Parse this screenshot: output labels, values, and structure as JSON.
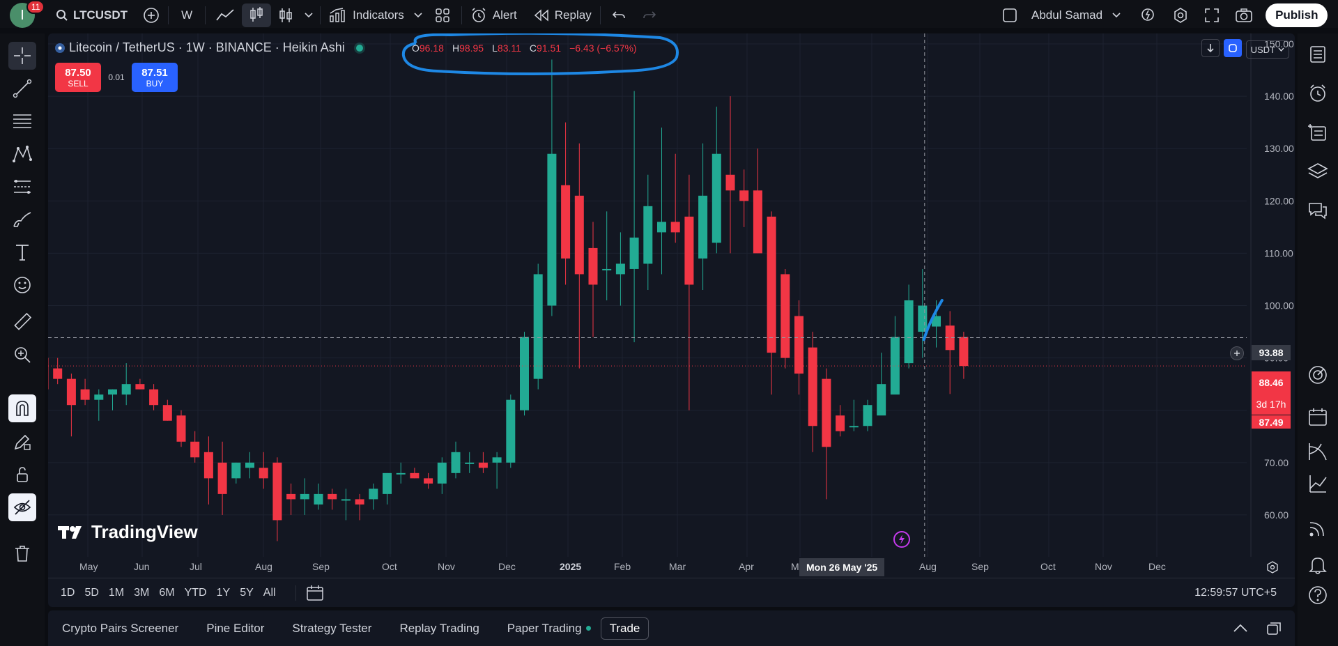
{
  "topbar": {
    "avatar_letter": "I",
    "notification_count": "11",
    "symbol": "LTCUSDT",
    "interval": "W",
    "indicators_label": "Indicators",
    "alert_label": "Alert",
    "replay_label": "Replay",
    "layout_name": "Abdul Samad",
    "publish_label": "Publish"
  },
  "legend": {
    "title": "Litecoin / TetherUS · 1W · BINANCE · Heikin Ashi",
    "ohlc": {
      "o_key": "O",
      "o": "96.18",
      "h_key": "H",
      "h": "98.95",
      "l_key": "L",
      "l": "83.11",
      "c_key": "C",
      "c": "91.51",
      "change": "−6.43 (−6.57%)"
    }
  },
  "trade_widget": {
    "sell_price": "87.50",
    "sell_label": "SELL",
    "spread": "0.01",
    "buy_price": "87.51",
    "buy_label": "BUY"
  },
  "currency_select": "USDT",
  "watermark": "TradingView",
  "price_labels": {
    "crosshair": "93.88",
    "last_price": "88.46",
    "countdown": "3d 17h",
    "bid": "87.49"
  },
  "crosshair_date": "Mon 26 May '25",
  "time_axis_labels": [
    "May",
    "Jun",
    "Jul",
    "Aug",
    "Sep",
    "Oct",
    "Nov",
    "Dec",
    "2025",
    "Feb",
    "Mar",
    "Apr",
    "M",
    "Jul",
    "Aug",
    "Sep",
    "Oct",
    "Nov",
    "Dec"
  ],
  "range_buttons": [
    "1D",
    "5D",
    "1M",
    "3M",
    "6M",
    "YTD",
    "1Y",
    "5Y",
    "All"
  ],
  "clock": "12:59:57 UTC+5",
  "bottom_tabs": [
    "Crypto Pairs Screener",
    "Pine Editor",
    "Strategy Tester",
    "Replay Trading",
    "Paper Trading",
    "Trade"
  ],
  "colors": {
    "up": "#22ab94",
    "down": "#f23645",
    "background": "#131722",
    "annotation": "#1e88e5"
  },
  "chart_data": {
    "type": "candlestick",
    "ylim": [
      52,
      152
    ],
    "yticks": [
      60,
      70,
      80,
      90,
      100,
      110,
      120,
      130,
      140,
      150
    ],
    "candles": [
      {
        "o": 90,
        "h": 91,
        "l": 80,
        "c": 84
      },
      {
        "o": 88,
        "h": 90,
        "l": 85,
        "c": 86
      },
      {
        "o": 86,
        "h": 87,
        "l": 75,
        "c": 81
      },
      {
        "o": 84,
        "h": 86,
        "l": 81,
        "c": 82
      },
      {
        "o": 82,
        "h": 84,
        "l": 78,
        "c": 83
      },
      {
        "o": 83,
        "h": 84,
        "l": 80,
        "c": 84
      },
      {
        "o": 83,
        "h": 89,
        "l": 81,
        "c": 85
      },
      {
        "o": 85,
        "h": 86,
        "l": 84,
        "c": 84
      },
      {
        "o": 84,
        "h": 85,
        "l": 80,
        "c": 81
      },
      {
        "o": 81,
        "h": 82,
        "l": 78,
        "c": 78
      },
      {
        "o": 79,
        "h": 80,
        "l": 73,
        "c": 74
      },
      {
        "o": 74,
        "h": 76,
        "l": 70,
        "c": 71
      },
      {
        "o": 72,
        "h": 75,
        "l": 62,
        "c": 67
      },
      {
        "o": 70,
        "h": 74,
        "l": 60,
        "c": 64
      },
      {
        "o": 67,
        "h": 70,
        "l": 66,
        "c": 70
      },
      {
        "o": 69,
        "h": 72,
        "l": 67,
        "c": 70
      },
      {
        "o": 69,
        "h": 72,
        "l": 65,
        "c": 67
      },
      {
        "o": 70,
        "h": 71,
        "l": 55,
        "c": 59
      },
      {
        "o": 64,
        "h": 66,
        "l": 60,
        "c": 63
      },
      {
        "o": 63,
        "h": 67,
        "l": 60,
        "c": 64
      },
      {
        "o": 62,
        "h": 66,
        "l": 61,
        "c": 64
      },
      {
        "o": 64,
        "h": 65,
        "l": 61,
        "c": 63
      },
      {
        "o": 63,
        "h": 65,
        "l": 59,
        "c": 63
      },
      {
        "o": 63,
        "h": 64,
        "l": 59,
        "c": 62
      },
      {
        "o": 63,
        "h": 66,
        "l": 61,
        "c": 65
      },
      {
        "o": 64,
        "h": 68,
        "l": 62,
        "c": 68
      },
      {
        "o": 68,
        "h": 70,
        "l": 66,
        "c": 68
      },
      {
        "o": 68,
        "h": 69,
        "l": 67,
        "c": 67
      },
      {
        "o": 67,
        "h": 68,
        "l": 65,
        "c": 66
      },
      {
        "o": 66,
        "h": 71,
        "l": 64,
        "c": 70
      },
      {
        "o": 68,
        "h": 74,
        "l": 67,
        "c": 72
      },
      {
        "o": 70,
        "h": 72,
        "l": 68,
        "c": 70
      },
      {
        "o": 70,
        "h": 72,
        "l": 68,
        "c": 69
      },
      {
        "o": 70,
        "h": 72,
        "l": 65,
        "c": 71
      },
      {
        "o": 70,
        "h": 83,
        "l": 69,
        "c": 82
      },
      {
        "o": 80,
        "h": 95,
        "l": 79,
        "c": 94
      },
      {
        "o": 86,
        "h": 108,
        "l": 84,
        "c": 106
      },
      {
        "o": 100,
        "h": 147,
        "l": 98,
        "c": 129
      },
      {
        "o": 123,
        "h": 135,
        "l": 104,
        "c": 109
      },
      {
        "o": 121,
        "h": 131,
        "l": 88,
        "c": 106
      },
      {
        "o": 111,
        "h": 116,
        "l": 94,
        "c": 104
      },
      {
        "o": 107,
        "h": 118,
        "l": 101,
        "c": 107
      },
      {
        "o": 106,
        "h": 114,
        "l": 100,
        "c": 108
      },
      {
        "o": 107,
        "h": 141,
        "l": 93,
        "c": 113
      },
      {
        "o": 108,
        "h": 125,
        "l": 103,
        "c": 119
      },
      {
        "o": 114,
        "h": 134,
        "l": 106,
        "c": 116
      },
      {
        "o": 116,
        "h": 129,
        "l": 112,
        "c": 114
      },
      {
        "o": 117,
        "h": 125,
        "l": 80,
        "c": 104
      },
      {
        "o": 109,
        "h": 131,
        "l": 103,
        "c": 121
      },
      {
        "o": 112,
        "h": 138,
        "l": 110,
        "c": 129
      },
      {
        "o": 125,
        "h": 140,
        "l": 110,
        "c": 122
      },
      {
        "o": 122,
        "h": 126,
        "l": 115,
        "c": 120
      },
      {
        "o": 122,
        "h": 130,
        "l": 110,
        "c": 110
      },
      {
        "o": 117,
        "h": 118,
        "l": 83,
        "c": 91
      },
      {
        "o": 106,
        "h": 107,
        "l": 88,
        "c": 90
      },
      {
        "o": 98,
        "h": 101,
        "l": 83,
        "c": 87
      },
      {
        "o": 92,
        "h": 95,
        "l": 72,
        "c": 77
      },
      {
        "o": 86,
        "h": 88,
        "l": 63,
        "c": 73
      },
      {
        "o": 79,
        "h": 81,
        "l": 75,
        "c": 76
      },
      {
        "o": 77,
        "h": 82,
        "l": 76,
        "c": 77
      },
      {
        "o": 77,
        "h": 82,
        "l": 76,
        "c": 81
      },
      {
        "o": 79,
        "h": 91,
        "l": 80,
        "c": 85
      },
      {
        "o": 83,
        "h": 98,
        "l": 84,
        "c": 94
      },
      {
        "o": 89,
        "h": 104,
        "l": 88,
        "c": 101
      },
      {
        "o": 95,
        "h": 107,
        "l": 90,
        "c": 100
      },
      {
        "o": 96,
        "h": 101,
        "l": 92,
        "c": 98
      },
      {
        "o": 96.18,
        "h": 98.95,
        "l": 83.11,
        "c": 91.51
      },
      {
        "o": 94,
        "h": 95,
        "l": 86,
        "c": 88.46
      }
    ],
    "crosshair_price": 93.88,
    "last_price": 88.46
  }
}
